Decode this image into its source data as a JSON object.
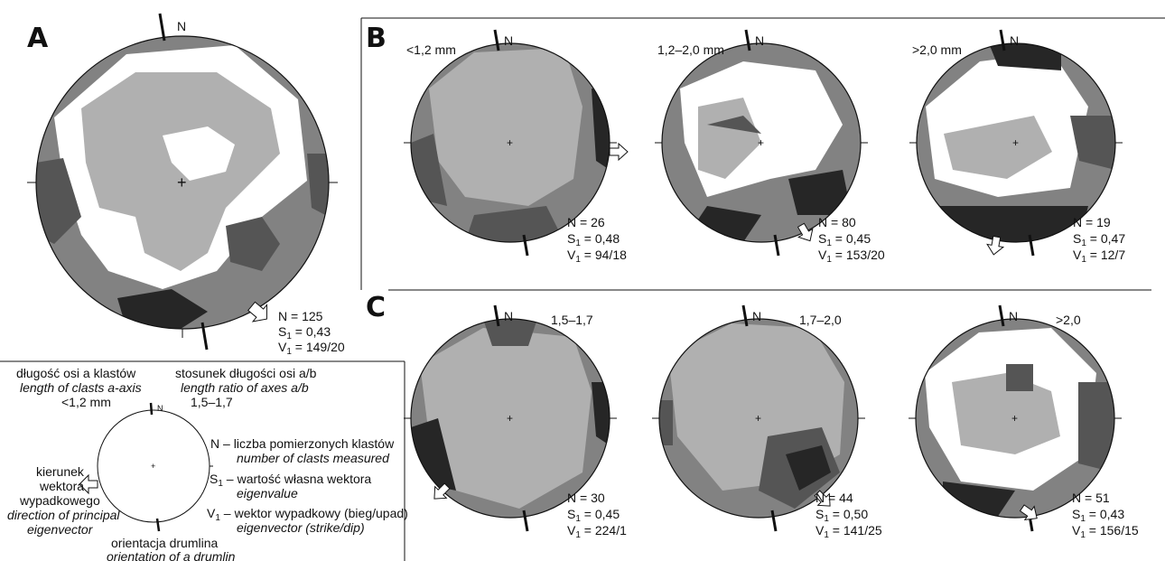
{
  "panels": {
    "A": {
      "letter": "A",
      "class_label": "",
      "stats": {
        "n": "N = 125",
        "s1": "S",
        "s1_sub": "1",
        "s1_val": " = 0,43",
        "v1": "V",
        "v1_sub": "1",
        "v1_val": " = 149/20"
      }
    },
    "B": {
      "letter": "B"
    },
    "C": {
      "letter": "C"
    }
  },
  "plots": [
    {
      "id": "B1",
      "class_label": "<1,2 mm",
      "n": "N = 26",
      "s1_val": " = 0,48",
      "v1_val": " = 94/18"
    },
    {
      "id": "B2",
      "class_label": "1,2–2,0 mm",
      "n": "N = 80",
      "s1_val": " = 0,45",
      "v1_val": " = 153/20"
    },
    {
      "id": "B3",
      "class_label": ">2,0 mm",
      "n": "N = 19",
      "s1_val": " = 0,47",
      "v1_val": " = 12/7"
    },
    {
      "id": "C1",
      "class_label": "1,5–1,7",
      "n": "N = 30",
      "s1_val": " = 0,45",
      "v1_val": " = 224/1"
    },
    {
      "id": "C2",
      "class_label": "1,7–2,0",
      "n": "N = 44",
      "s1_val": " = 0,50",
      "v1_val": " = 141/25"
    },
    {
      "id": "C3",
      "class_label": ">2,0",
      "n": "N = 51",
      "s1_val": " = 0,43",
      "v1_val": " = 156/15"
    }
  ],
  "north": "N",
  "legend": {
    "axis_length_pl": "długość osi a klastów",
    "axis_length_en": "length of clasts a-axis",
    "axis_length_value": "<1,2 mm",
    "ratio_pl": "stosunek długości osi a/b",
    "ratio_en": "length ratio of axes a/b",
    "ratio_value": "1,5–1,7",
    "n_symbol": "N –",
    "n_pl": "liczba pomierzonych klastów",
    "n_en": "number of clasts measured",
    "s1_symbol": "S",
    "s1_sub": "1",
    "s1_dash": " –",
    "s1_pl": "wartość własna wektora",
    "s1_en": "eigenvalue",
    "v1_symbol": "V",
    "v1_sub": "1",
    "v1_dash": " –",
    "v1_pl": "wektor wypadkowy (bieg/upad)",
    "v1_en": "eigenvector (strike/dip)",
    "dir_pl_1": "kierunek",
    "dir_pl_2": "wektora",
    "dir_pl_3": "wypadkowego",
    "dir_en_1": "direction of principal",
    "dir_en_2": "eigenvector",
    "drumlin_pl": "orientacja drumlina",
    "drumlin_en": "orientation of a drumlin"
  },
  "colors": {
    "shade1": "#ffffff",
    "shade2": "#b0b0b0",
    "shade3": "#828282",
    "shade4": "#555555",
    "shade5": "#262626"
  }
}
